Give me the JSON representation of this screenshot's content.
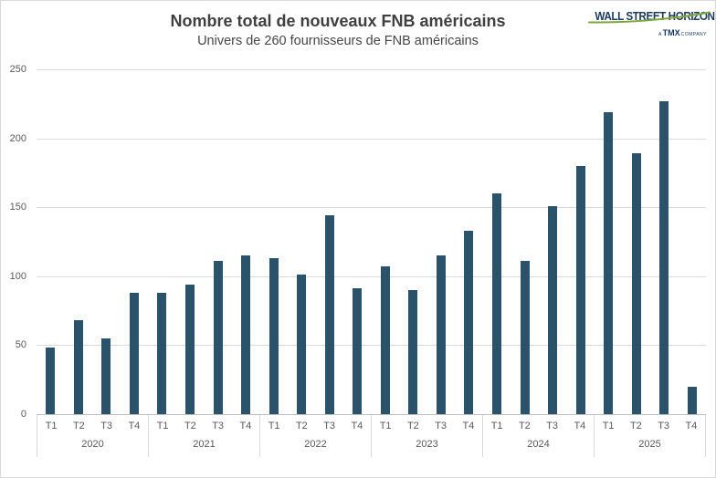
{
  "chart_data": {
    "type": "bar",
    "title": "Nombre total de nouveaux FNB américains",
    "subtitle": "Univers de 260 fournisseurs de FNB américains",
    "xlabel": "",
    "ylabel": "",
    "ylim": [
      0,
      250
    ],
    "y_ticks": [
      0,
      50,
      100,
      150,
      200,
      250
    ],
    "grid": true,
    "legend": "none",
    "bar_color": "#2A536B",
    "years": [
      {
        "label": "2020",
        "quarters": [
          "T1",
          "T2",
          "T3",
          "T4"
        ],
        "values": [
          48,
          68,
          55,
          88
        ]
      },
      {
        "label": "2021",
        "quarters": [
          "T1",
          "T2",
          "T3",
          "T4"
        ],
        "values": [
          88,
          94,
          111,
          115
        ]
      },
      {
        "label": "2022",
        "quarters": [
          "T1",
          "T2",
          "T3",
          "T4"
        ],
        "values": [
          113,
          101,
          144,
          91
        ]
      },
      {
        "label": "2023",
        "quarters": [
          "T1",
          "T2",
          "T3",
          "T4"
        ],
        "values": [
          107,
          90,
          115,
          133
        ]
      },
      {
        "label": "2024",
        "quarters": [
          "T1",
          "T2",
          "T3",
          "T4"
        ],
        "values": [
          160,
          111,
          151,
          180
        ]
      },
      {
        "label": "2025",
        "quarters": [
          "T1",
          "T2",
          "T3",
          "T4"
        ],
        "values": [
          219,
          189,
          227,
          20
        ]
      }
    ]
  },
  "logo": {
    "brand": "WALL STREET HORIZON",
    "tagline_prefix": "A",
    "tagline_brand": "TMX",
    "tagline_suffix": "COMPANY"
  },
  "colors": {
    "bar": "#2A536B",
    "gridline": "#D9D9D9",
    "axis_line": "#BFBFBF",
    "title_text": "#3F3F3F",
    "axis_text": "#595959",
    "figure_border": "#D9D9D9",
    "logo_navy": "#1B3A5C",
    "logo_green": "#7EA63E"
  }
}
